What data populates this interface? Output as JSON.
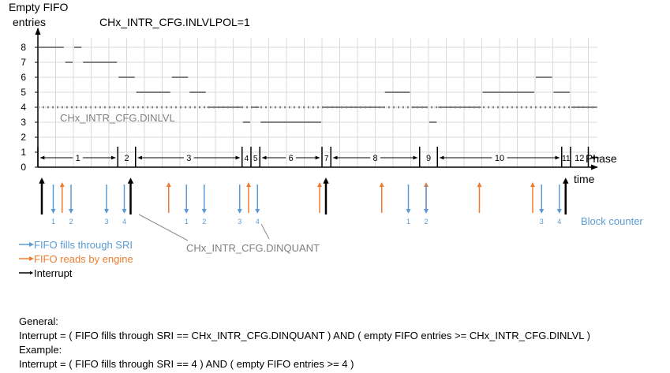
{
  "y_axis_label_line1": "Empty FIFO",
  "y_axis_label_line2": "entries",
  "title": "CHx_INTR_CFG.INLVLPOL=1",
  "y_ticks": [
    "0",
    "1",
    "2",
    "3",
    "4",
    "5",
    "6",
    "7",
    "8"
  ],
  "dinlvl_label": "CHx_INTR_CFG.DINLVL",
  "dinlvl_value": 4,
  "phase_label": "Phase",
  "time_label": "time",
  "block_counter_label": "Block counter",
  "dinquant_label": "CHx_INTR_CFG.DINQUANT",
  "legend": {
    "fills": "FIFO fills through SRI",
    "reads": "FIFO reads by engine",
    "interrupt": "Interrupt"
  },
  "colors": {
    "fills": "#5b9bd5",
    "reads": "#ed7d31",
    "interrupt": "#000000",
    "level": "#7f7f7f",
    "grid": "#d9d9d9"
  },
  "phases": [
    "1",
    "2",
    "3",
    "4",
    "5",
    "6",
    "7",
    "8",
    "9",
    "10",
    "11",
    "12"
  ],
  "level_segments": [
    {
      "from": 0,
      "to": 1.5,
      "level": 8
    },
    {
      "from": 1.5,
      "to": 2.0,
      "level": 7
    },
    {
      "from": 2.0,
      "to": 2.5,
      "level": 8
    },
    {
      "from": 2.5,
      "to": 4.5,
      "level": 7
    },
    {
      "from": 4.5,
      "to": 5.5,
      "level": 6
    },
    {
      "from": 5.5,
      "to": 7.5,
      "level": 5
    },
    {
      "from": 7.5,
      "to": 8.5,
      "level": 6
    },
    {
      "from": 8.5,
      "to": 9.5,
      "level": 5
    },
    {
      "from": 9.5,
      "to": 11.5,
      "level": 4
    },
    {
      "from": 11.5,
      "to": 12.0,
      "level": 3
    },
    {
      "from": 12.0,
      "to": 12.5,
      "level": 4
    },
    {
      "from": 12.5,
      "to": 16.0,
      "level": 3
    },
    {
      "from": 16.0,
      "to": 19.5,
      "level": 4
    },
    {
      "from": 19.5,
      "to": 21.0,
      "level": 5
    },
    {
      "from": 21.0,
      "to": 22.0,
      "level": 4
    },
    {
      "from": 22.0,
      "to": 22.5,
      "level": 3
    },
    {
      "from": 22.5,
      "to": 25.0,
      "level": 4
    },
    {
      "from": 25.0,
      "to": 28.0,
      "level": 5
    },
    {
      "from": 28.0,
      "to": 29.0,
      "level": 6
    },
    {
      "from": 29.0,
      "to": 30.0,
      "level": 5
    },
    {
      "from": 30.0,
      "to": 31.5,
      "level": 4
    }
  ],
  "phase_boundaries": [
    0,
    4.5,
    5.5,
    11.5,
    12.0,
    12.5,
    16.0,
    16.5,
    21.5,
    22.5,
    29.5,
    30.0,
    31.0
  ],
  "interrupt_times": [
    0,
    5.0,
    16.0,
    29.5
  ],
  "read_times": [
    1.5,
    7.5,
    12.0,
    16.0,
    19.5,
    22.0,
    25.0,
    28.0
  ],
  "fill_events": [
    {
      "t": 1.0,
      "label": "1"
    },
    {
      "t": 2.0,
      "label": "2"
    },
    {
      "t": 4.0,
      "label": "3"
    },
    {
      "t": 5.0,
      "label": "4"
    },
    {
      "t": 8.5,
      "label": "1"
    },
    {
      "t": 9.5,
      "label": "2"
    },
    {
      "t": 11.5,
      "label": "3"
    },
    {
      "t": 12.5,
      "label": "4"
    },
    {
      "t": 21.0,
      "label": "1"
    },
    {
      "t": 22.0,
      "label": "2"
    },
    {
      "t": 28.5,
      "label": "3"
    },
    {
      "t": 29.5,
      "label": "4"
    }
  ],
  "text_lines": [
    "General:",
    "Interrupt = ( FIFO fills through SRI == CHx_INTR_CFG.DINQUANT ) AND ( empty FIFO entries >= CHx_INTR_CFG.DINLVL )",
    "Example:",
    "Interrupt = ( FIFO fills through SRI == 4 ) AND ( empty FIFO entries >= 4 )"
  ]
}
